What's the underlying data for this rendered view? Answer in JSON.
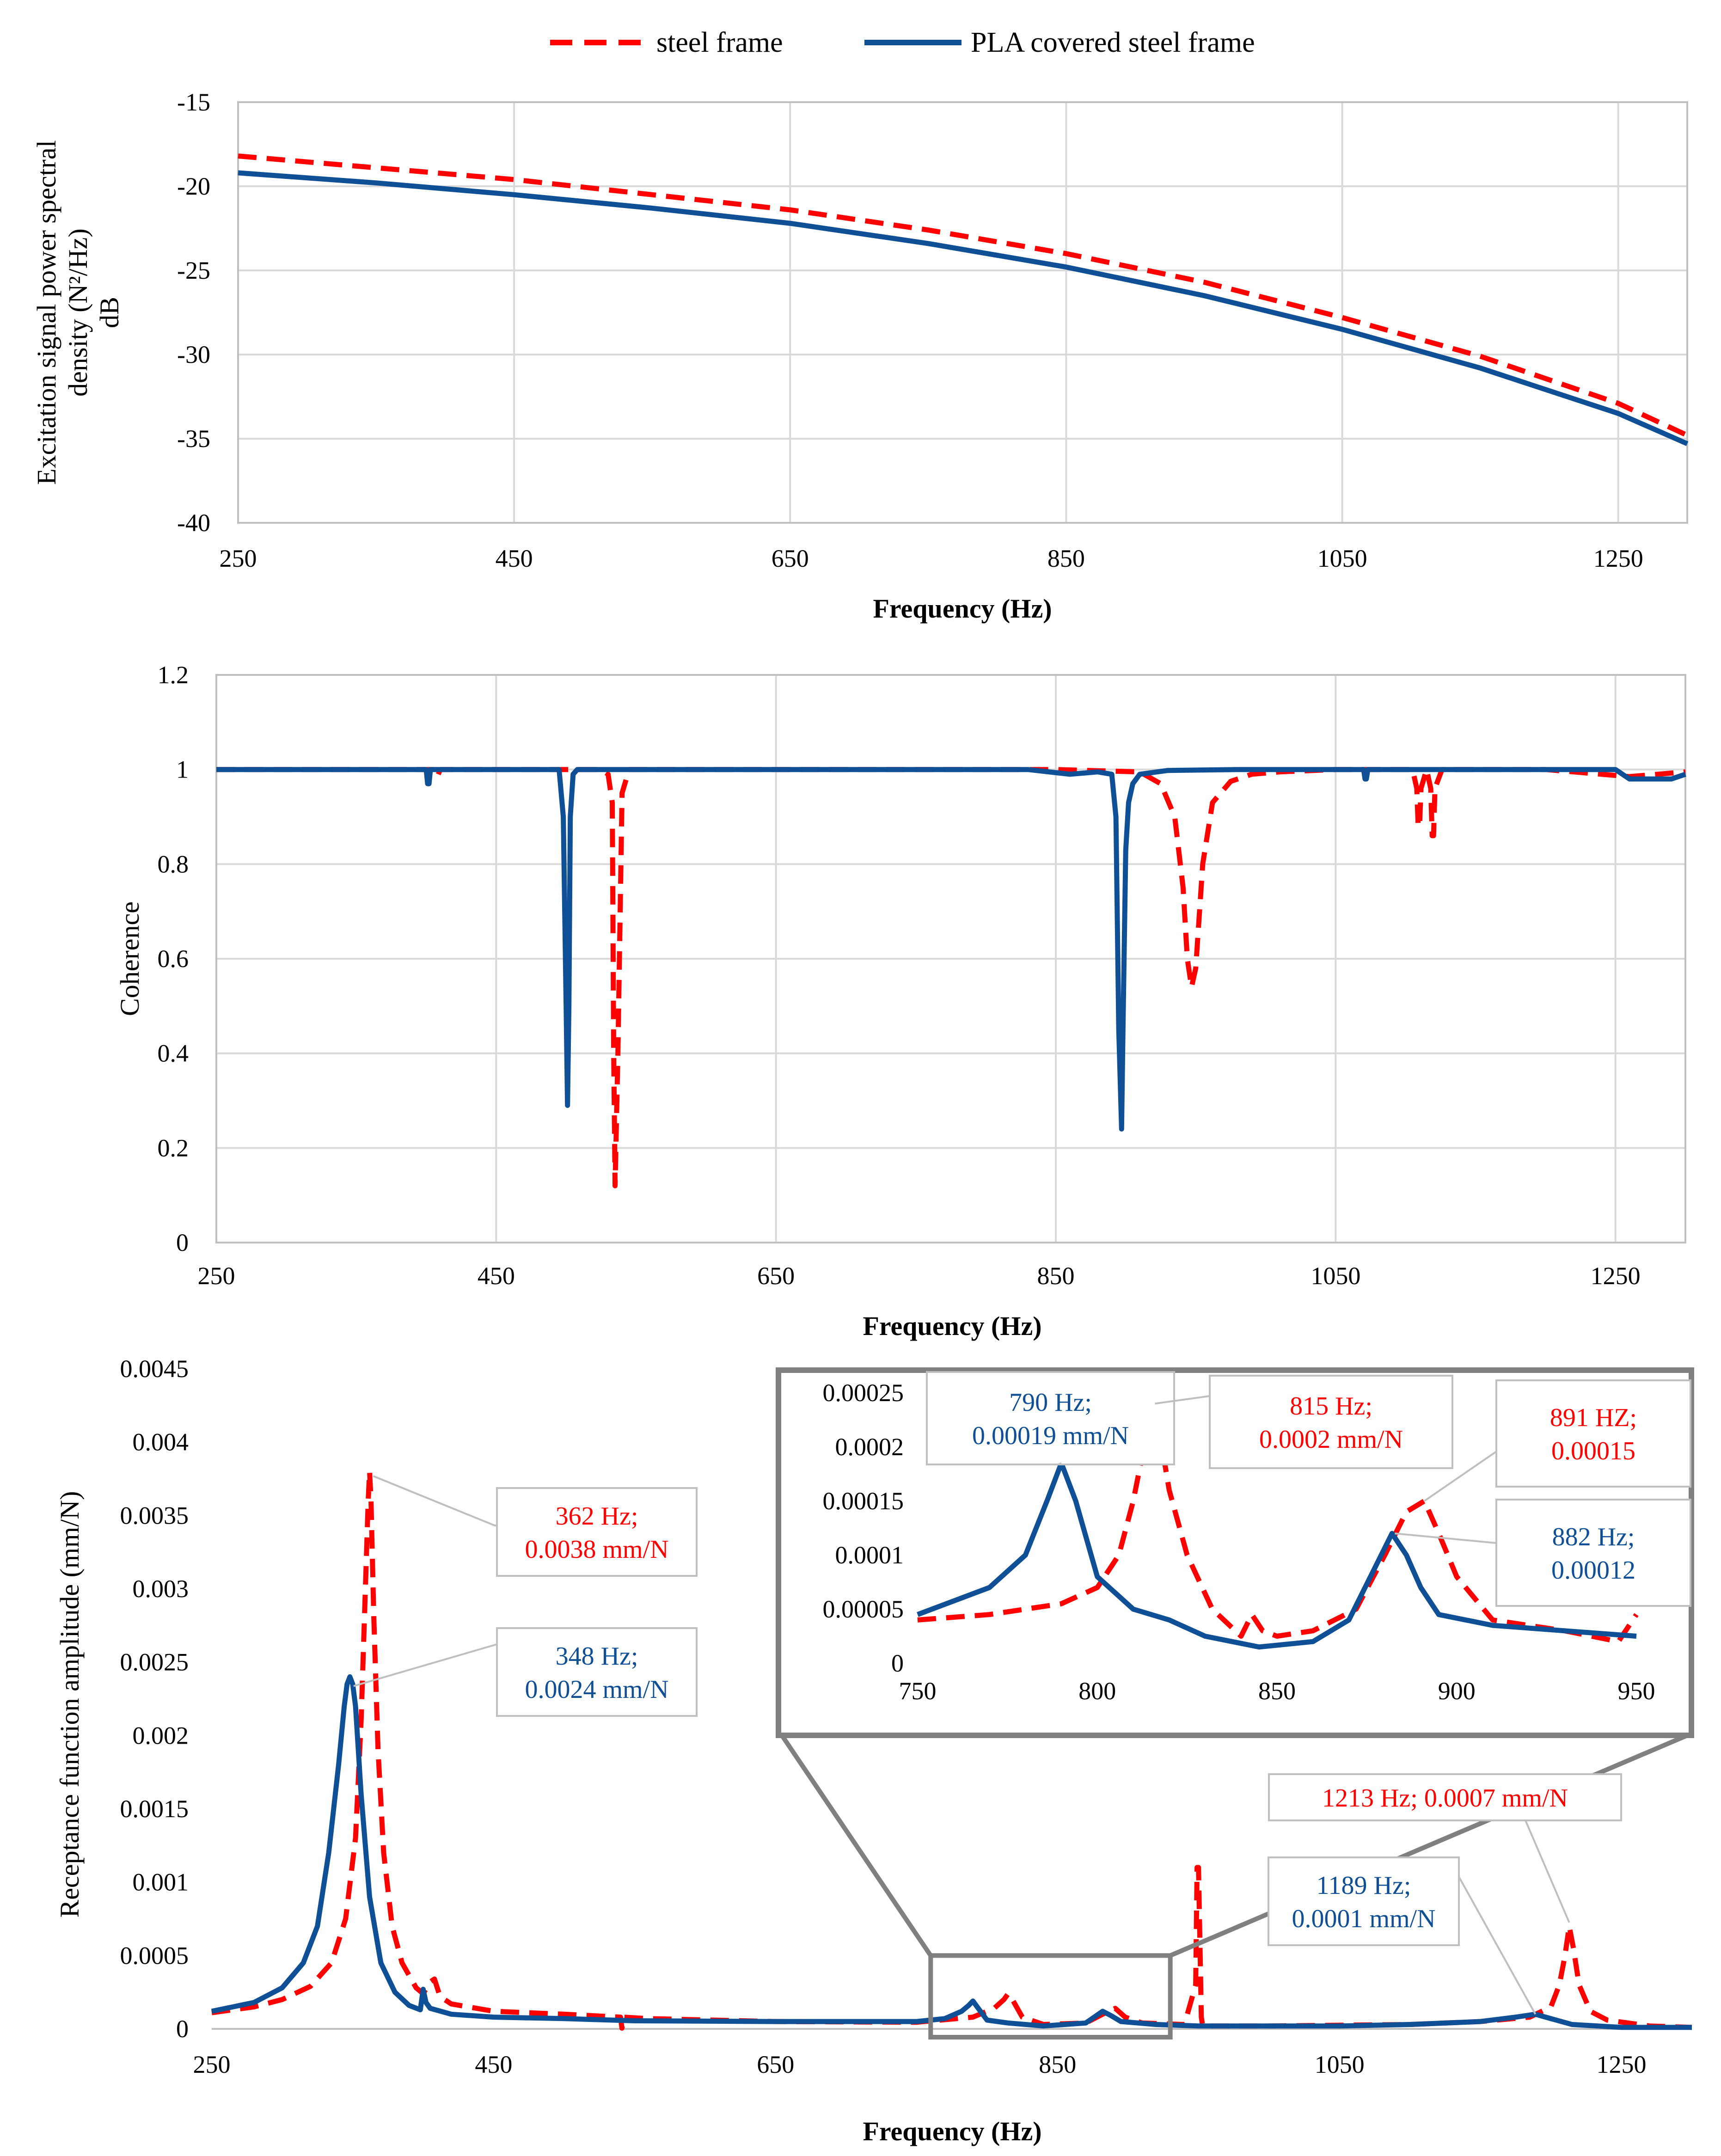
{
  "colors": {
    "steel": "#ff0000",
    "pla": "#0f4f96",
    "grid": "#d9d9d9",
    "plot_border": "#bfbfbf",
    "inset_frame": "#808080",
    "callout_border": "#bfbfbf"
  },
  "legend": [
    {
      "name": "steel frame",
      "style": "dashed",
      "color": "#ff0000"
    },
    {
      "name": "PLA covered steel frame",
      "style": "solid",
      "color": "#0f4f96"
    }
  ],
  "chart_data": [
    {
      "type": "line",
      "xlabel": "Frequency (Hz)",
      "ylabel_lines": [
        "Excitation signal power spectral",
        "density (N²/Hz)",
        "dB"
      ],
      "xlim": [
        250,
        1300
      ],
      "ylim": [
        -40,
        -15
      ],
      "xticks": [
        250,
        450,
        650,
        850,
        1050,
        1250
      ],
      "yticks": [
        -40,
        -35,
        -30,
        -25,
        -20,
        -15
      ],
      "grid": true,
      "series": [
        {
          "name": "steel frame",
          "x": [
            250,
            350,
            450,
            550,
            650,
            750,
            850,
            950,
            1050,
            1150,
            1250,
            1300
          ],
          "y": [
            -18.2,
            -18.9,
            -19.6,
            -20.5,
            -21.4,
            -22.6,
            -24.0,
            -25.7,
            -27.8,
            -30.1,
            -32.9,
            -34.8
          ]
        },
        {
          "name": "PLA covered steel frame",
          "x": [
            250,
            350,
            450,
            550,
            650,
            750,
            850,
            950,
            1050,
            1150,
            1250,
            1300
          ],
          "y": [
            -19.2,
            -19.8,
            -20.5,
            -21.3,
            -22.2,
            -23.4,
            -24.8,
            -26.5,
            -28.5,
            -30.8,
            -33.5,
            -35.3
          ]
        }
      ]
    },
    {
      "type": "line",
      "xlabel": "Frequency (Hz)",
      "ylabel": "Coherence",
      "xlim": [
        250,
        1300
      ],
      "ylim": [
        0,
        1.2
      ],
      "xticks": [
        250,
        450,
        650,
        850,
        1050,
        1250
      ],
      "yticks": [
        0,
        0.2,
        0.4,
        0.6,
        0.8,
        1,
        1.2
      ],
      "grid": true,
      "series": [
        {
          "name": "steel frame",
          "x": [
            250,
            405,
            406,
            408,
            410,
            500,
            525,
            530,
            533,
            534,
            535,
            537,
            540,
            545,
            850,
            910,
            925,
            935,
            941,
            944,
            947,
            950,
            955,
            962,
            975,
            990,
            1010,
            1050,
            1105,
            1108,
            1109,
            1110,
            1111,
            1115,
            1118,
            1119,
            1120,
            1121,
            1126,
            1200,
            1260,
            1300
          ],
          "y": [
            1,
            1,
            0.985,
            0.985,
            1,
            1,
            1,
            0.99,
            0.93,
            0.4,
            0.12,
            0.4,
            0.95,
            1,
            1,
            0.995,
            0.97,
            0.9,
            0.75,
            0.6,
            0.54,
            0.58,
            0.8,
            0.93,
            0.975,
            0.99,
            0.995,
            1,
            1,
            0.96,
            0.88,
            0.88,
            0.96,
            1,
            0.96,
            0.86,
            0.86,
            0.96,
            1,
            1,
            0.985,
            0.995
          ]
        },
        {
          "name": "PLA covered steel frame",
          "x": [
            250,
            400,
            401,
            402,
            403,
            404,
            495,
            498,
            500,
            501,
            502,
            503,
            505,
            508,
            830,
            860,
            880,
            890,
            893,
            895,
            897,
            898,
            900,
            902,
            905,
            910,
            930,
            980,
            1070,
            1071,
            1072,
            1073,
            1250,
            1260,
            1290,
            1300
          ],
          "y": [
            1,
            1,
            0.97,
            0.97,
            1,
            1,
            1,
            0.9,
            0.5,
            0.29,
            0.5,
            0.9,
            0.99,
            1,
            1,
            0.99,
            0.995,
            0.99,
            0.9,
            0.45,
            0.24,
            0.45,
            0.83,
            0.93,
            0.97,
            0.99,
            0.998,
            1,
            1,
            0.98,
            0.98,
            1,
            1,
            0.98,
            0.98,
            0.99
          ]
        }
      ]
    },
    {
      "type": "line",
      "xlabel": "Frequency (Hz)",
      "ylabel": "Receptance function amplitude (mm/N)",
      "xlim": [
        250,
        1300
      ],
      "ylim": [
        0,
        0.0045
      ],
      "xticks": [
        250,
        450,
        650,
        850,
        1050,
        1250
      ],
      "yticks": [
        0,
        0.0005,
        0.001,
        0.0015,
        0.002,
        0.0025,
        0.003,
        0.0035,
        0.004,
        0.0045
      ],
      "ytick_labels": [
        "0",
        "0.0005",
        "0.001",
        "0.0015",
        "0.002",
        "0.0025",
        "0.003",
        "0.0035",
        "0.004",
        "0.0045"
      ],
      "grid": false,
      "series": [
        {
          "name": "steel frame",
          "x": [
            250,
            280,
            300,
            320,
            335,
            345,
            352,
            356,
            359,
            361,
            362,
            363,
            365,
            368,
            372,
            378,
            385,
            395,
            400,
            405,
            408,
            412,
            420,
            450,
            500,
            540,
            541,
            542,
            560,
            650,
            750,
            790,
            805,
            812,
            815,
            818,
            825,
            840,
            870,
            882,
            891,
            898,
            910,
            940,
            948,
            949,
            950,
            951,
            952,
            953,
            960,
            1000,
            1100,
            1150,
            1185,
            1200,
            1206,
            1210,
            1213,
            1216,
            1220,
            1228,
            1240,
            1270,
            1300
          ],
          "y": [
            0.00011,
            0.00015,
            0.0002,
            0.00029,
            0.00045,
            0.00075,
            0.0013,
            0.0021,
            0.003,
            0.0036,
            0.0038,
            0.0036,
            0.0028,
            0.0019,
            0.0012,
            0.0007,
            0.00045,
            0.00028,
            0.00024,
            0.00032,
            0.00034,
            0.00022,
            0.00017,
            0.00012,
            0.0001,
            8e-05,
            5e-06,
            8e-05,
            7e-05,
            5e-05,
            4.5e-05,
            8e-05,
            0.00014,
            0.0002,
            0.00024,
            0.0002,
            8e-05,
            3e-05,
            4e-05,
            0.0001,
            0.00014,
            8e-05,
            4e-05,
            3e-05,
            0.0003,
            0.0011,
            0.0011,
            0.0006,
            8e-05,
            2e-05,
            2e-05,
            2e-05,
            3e-05,
            5e-05,
            8e-05,
            0.00015,
            0.0003,
            0.0005,
            0.0007,
            0.00055,
            0.0003,
            0.00012,
            6e-05,
            2e-05,
            1e-05
          ]
        },
        {
          "name": "PLA covered steel frame",
          "x": [
            250,
            280,
            300,
            315,
            325,
            333,
            340,
            344,
            346,
            348,
            350,
            352,
            356,
            362,
            370,
            380,
            390,
            398,
            400,
            402,
            405,
            420,
            450,
            500,
            550,
            650,
            750,
            770,
            782,
            787,
            790,
            793,
            800,
            815,
            840,
            870,
            876,
            882,
            888,
            895,
            920,
            950,
            1050,
            1100,
            1150,
            1175,
            1189,
            1200,
            1215,
            1250,
            1300
          ],
          "y": [
            0.00012,
            0.00018,
            0.00028,
            0.00045,
            0.0007,
            0.0012,
            0.0018,
            0.0022,
            0.00235,
            0.0024,
            0.00235,
            0.0022,
            0.0016,
            0.0009,
            0.00045,
            0.00025,
            0.00016,
            0.00013,
            0.00027,
            0.00018,
            0.00014,
            0.0001,
            8e-05,
            7e-05,
            5.5e-05,
            5e-05,
            5e-05,
            7e-05,
            0.00012,
            0.00016,
            0.00019,
            0.00015,
            6e-05,
            4e-05,
            2e-05,
            4e-05,
            8e-05,
            0.00012,
            9e-05,
            5e-05,
            3e-05,
            2e-05,
            2e-05,
            3e-05,
            5e-05,
            8e-05,
            0.0001,
            7e-05,
            3e-05,
            1e-05,
            1e-05
          ]
        }
      ],
      "annotations": [
        {
          "text_lines": [
            "362 Hz;",
            "0.0038 mm/N"
          ],
          "x": 362,
          "y": 0.0038,
          "color": "#ff0000"
        },
        {
          "text_lines": [
            "348 Hz;",
            "0.0024 mm/N"
          ],
          "x": 348,
          "y": 0.0024,
          "color": "#0f4f96"
        },
        {
          "text_lines": [
            "1213 Hz; 0.0007 mm/N"
          ],
          "x": 1213,
          "y": 0.0007,
          "color": "#ff0000"
        },
        {
          "text_lines": [
            "1189 Hz;",
            "0.0001 mm/N"
          ],
          "x": 1189,
          "y": 0.0001,
          "color": "#0f4f96"
        }
      ],
      "zoom_region": {
        "x": [
          760,
          930
        ],
        "y": [
          0,
          0.0005
        ]
      },
      "inset": {
        "xlim": [
          750,
          950
        ],
        "ylim": [
          0,
          0.00025
        ],
        "xticks": [
          750,
          800,
          850,
          900,
          950
        ],
        "yticks": [
          0,
          5e-05,
          0.0001,
          0.00015,
          0.0002,
          0.00025
        ],
        "ytick_labels": [
          "0",
          "0.00005",
          "0.0001",
          "0.00015",
          "0.0002",
          "0.00025"
        ],
        "series": [
          {
            "name": "steel frame",
            "x": [
              750,
              770,
              790,
              800,
              806,
              810,
              813,
              815,
              817,
              820,
              825,
              832,
              840,
              843,
              846,
              850,
              860,
              872,
              880,
              886,
              891,
              895,
              900,
              910,
              930,
              945,
              950
            ],
            "y": [
              4e-05,
              4.5e-05,
              5.5e-05,
              7e-05,
              0.0001,
              0.00015,
              0.0002,
              0.00024,
              0.00022,
              0.00016,
              0.0001,
              5e-05,
              2.5e-05,
              4.5e-05,
              3e-05,
              2.5e-05,
              3e-05,
              5e-05,
              0.0001,
              0.00014,
              0.00015,
              0.00012,
              8e-05,
              4e-05,
              3e-05,
              2e-05,
              4.5e-05
            ]
          },
          {
            "name": "PLA covered steel frame",
            "x": [
              750,
              770,
              780,
              786,
              790,
              794,
              800,
              810,
              820,
              830,
              845,
              860,
              870,
              876,
              882,
              886,
              890,
              895,
              910,
              930,
              950
            ],
            "y": [
              4.5e-05,
              7e-05,
              0.0001,
              0.00015,
              0.000185,
              0.00015,
              8e-05,
              5e-05,
              4e-05,
              2.5e-05,
              1.5e-05,
              2e-05,
              4e-05,
              8e-05,
              0.00012,
              0.0001,
              7e-05,
              4.5e-05,
              3.5e-05,
              3e-05,
              2.5e-05
            ]
          }
        ],
        "annotations": [
          {
            "text_lines": [
              "790 Hz;",
              "0.00019 mm/N"
            ],
            "x": 790,
            "y": 0.000185,
            "color": "#0f4f96"
          },
          {
            "text_lines": [
              "815 Hz;",
              "0.0002 mm/N"
            ],
            "x": 815,
            "y": 0.00024,
            "color": "#ff0000"
          },
          {
            "text_lines": [
              "891 HZ;",
              "0.00015"
            ],
            "x": 891,
            "y": 0.00015,
            "color": "#ff0000"
          },
          {
            "text_lines": [
              "882 Hz;",
              "0.00012"
            ],
            "x": 882,
            "y": 0.00012,
            "color": "#0f4f96"
          }
        ]
      }
    }
  ]
}
